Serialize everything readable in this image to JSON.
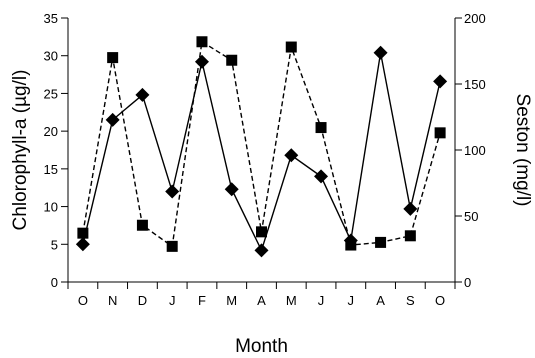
{
  "chart_data": {
    "type": "line",
    "xlabel": "Month",
    "categories": [
      "O",
      "N",
      "D",
      "J",
      "F",
      "M",
      "A",
      "M",
      "J",
      "J",
      "A",
      "S",
      "O"
    ],
    "y_left": {
      "label": "Chlorophyll-a (µg/l)",
      "lim": [
        0,
        35
      ],
      "ticks": [
        0,
        5,
        10,
        15,
        20,
        25,
        30,
        35
      ]
    },
    "y_right": {
      "label": "Seston (mg/l)",
      "lim": [
        0,
        200
      ],
      "ticks": [
        0,
        50,
        100,
        150,
        200
      ]
    },
    "series": [
      {
        "axis": "left",
        "marker": "diamond",
        "line": "solid",
        "values": [
          5.0,
          21.5,
          24.8,
          12.0,
          29.2,
          12.3,
          4.2,
          16.8,
          14.0,
          5.5,
          30.4,
          9.7,
          26.6
        ]
      },
      {
        "axis": "right",
        "marker": "square",
        "line": "dashed",
        "values": [
          37,
          170,
          43,
          27,
          182,
          168,
          38,
          178,
          117,
          28,
          30,
          35,
          113
        ]
      }
    ],
    "grid": false
  }
}
